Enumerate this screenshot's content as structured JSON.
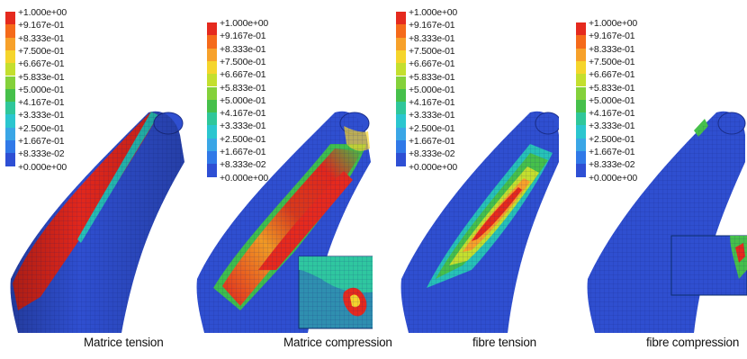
{
  "legend": {
    "labels": [
      "+1.000e+00",
      "+9.167e-01",
      "+8.333e-01",
      "+7.500e-01",
      "+6.667e-01",
      "+5.833e-01",
      "+5.000e-01",
      "+4.167e-01",
      "+3.333e-01",
      "+2.500e-01",
      "+1.667e-01",
      "+8.333e-02",
      "+0.000e+00"
    ],
    "colors": [
      "#e52a1e",
      "#f56a1a",
      "#f7a12a",
      "#f5d52c",
      "#c4df2e",
      "#84d13a",
      "#46c04b",
      "#2fc79a",
      "#2bc6cf",
      "#3aa6e6",
      "#3079e8",
      "#2e4fd4"
    ]
  },
  "panels": [
    {
      "caption": "Matrice tension"
    },
    {
      "caption": "Matrice compression"
    },
    {
      "caption": "fibre tension"
    },
    {
      "caption": "fibre compression"
    }
  ]
}
